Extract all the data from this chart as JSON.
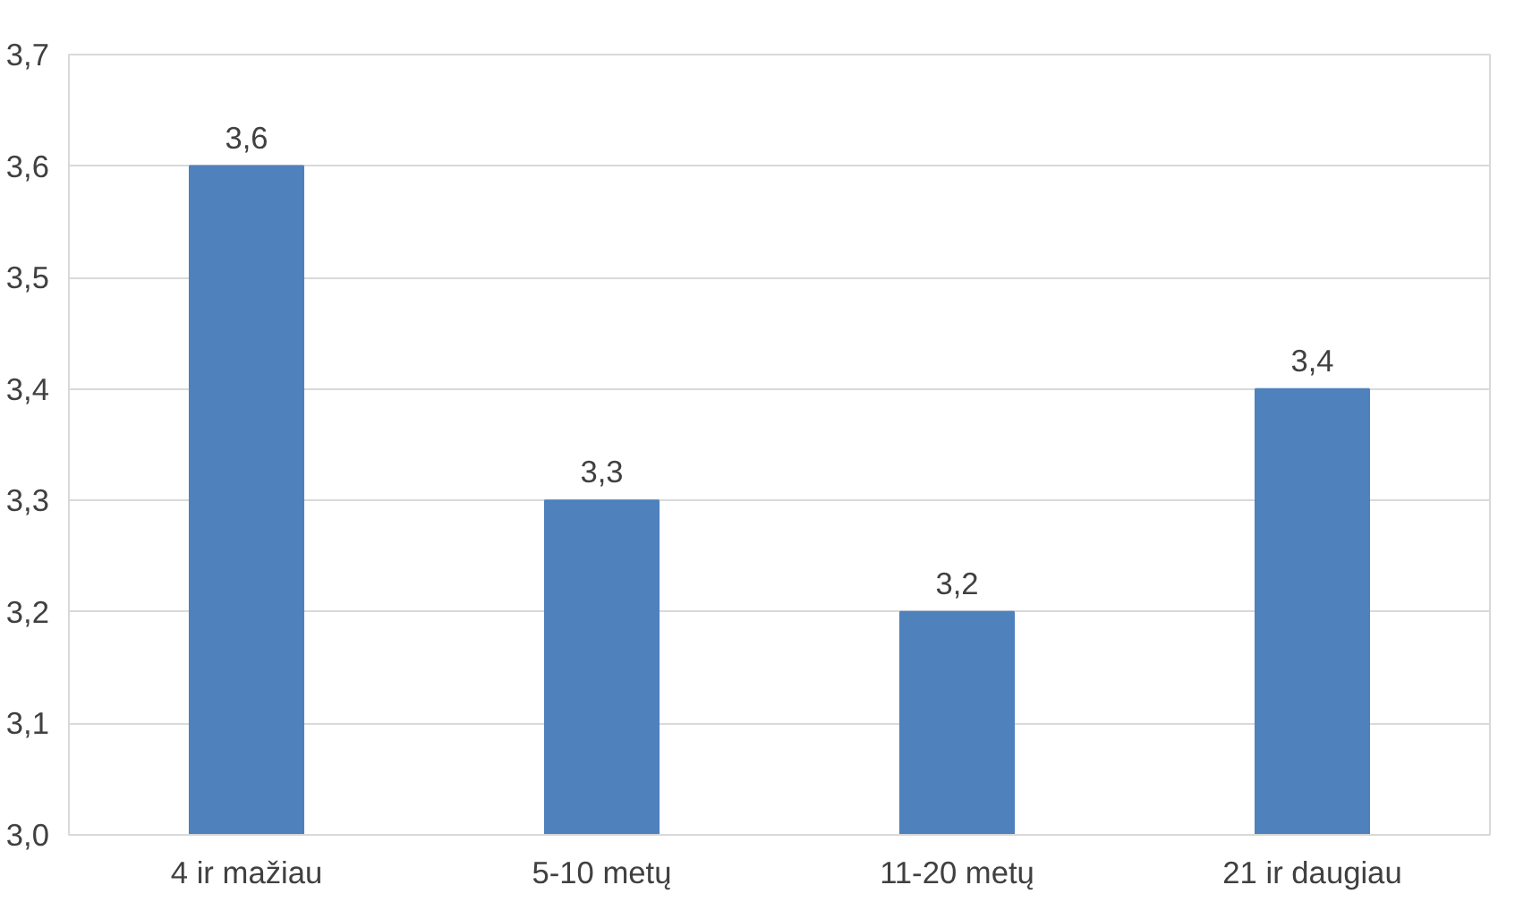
{
  "chart_data": {
    "type": "bar",
    "categories": [
      "4 ir mažiau",
      "5-10 metų",
      "11-20 metų",
      "21 ir daugiau"
    ],
    "values": [
      3.6,
      3.3,
      3.2,
      3.4
    ],
    "value_labels": [
      "3,6",
      "3,3",
      "3,2",
      "3,4"
    ],
    "color": "#4f81bd",
    "ylim": [
      3.0,
      3.7
    ],
    "yticks": [
      {
        "value": 3.0,
        "label": "3,0"
      },
      {
        "value": 3.1,
        "label": "3,1"
      },
      {
        "value": 3.2,
        "label": "3,2"
      },
      {
        "value": 3.3,
        "label": "3,3"
      },
      {
        "value": 3.4,
        "label": "3,4"
      },
      {
        "value": 3.5,
        "label": "3,5"
      },
      {
        "value": 3.6,
        "label": "3,6"
      },
      {
        "value": 3.7,
        "label": "3,7"
      }
    ],
    "grid": "y"
  }
}
